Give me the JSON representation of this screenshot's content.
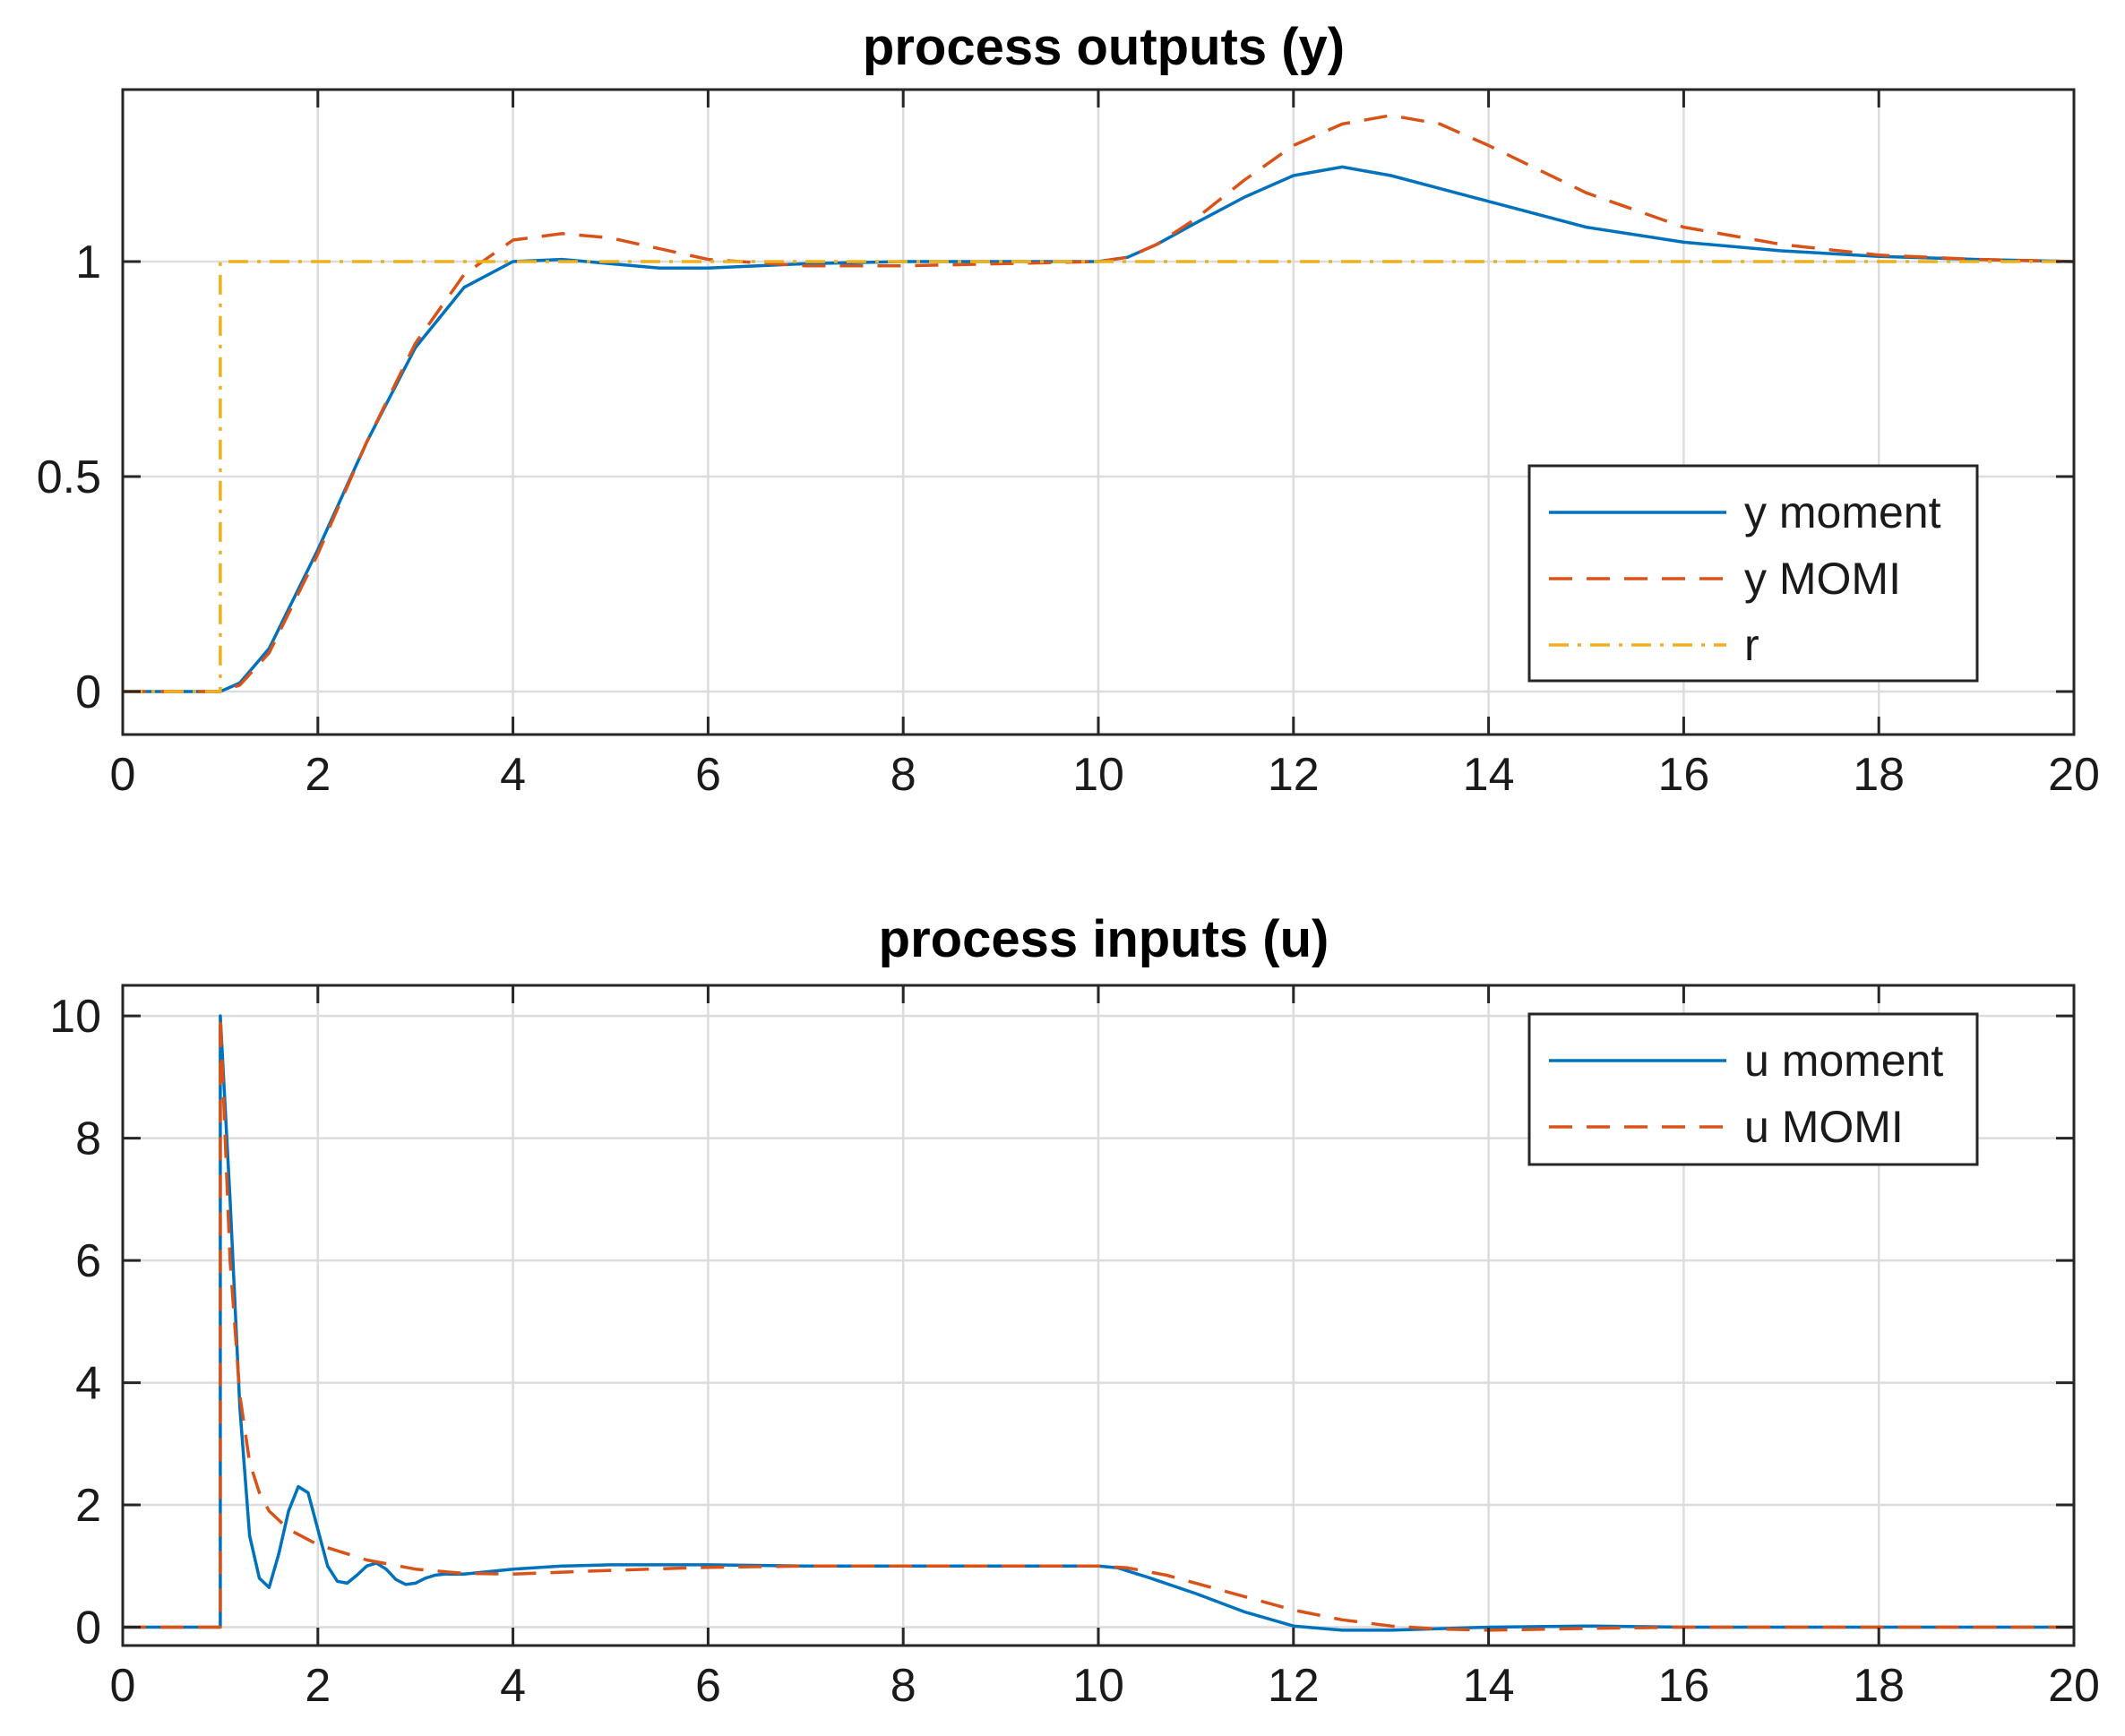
{
  "chart_data": [
    {
      "type": "line",
      "title": "process outputs (y)",
      "xlabel": "",
      "ylabel": "",
      "xlim": [
        0,
        20
      ],
      "ylim": [
        -0.1,
        1.4
      ],
      "xticks": [
        0,
        2,
        4,
        6,
        8,
        10,
        12,
        14,
        16,
        18,
        20
      ],
      "xtick_labels": [
        "0",
        "2",
        "4",
        "6",
        "8",
        "10",
        "12",
        "14",
        "16",
        "18",
        "20"
      ],
      "yticks": [
        0,
        0.5,
        1
      ],
      "ytick_labels": [
        "0",
        "0.5",
        "1"
      ],
      "grid": true,
      "legend_position": "bottom-right",
      "series": [
        {
          "name": "y moment",
          "color": "#0072BD",
          "style": "solid",
          "x": [
            0,
            1.0,
            1.2,
            1.5,
            2.0,
            2.5,
            3.0,
            3.5,
            4.0,
            4.5,
            5.0,
            5.5,
            6.0,
            7.0,
            8.0,
            9.0,
            10.0,
            10.3,
            10.6,
            11.0,
            11.5,
            12.0,
            12.5,
            13.0,
            13.5,
            14.0,
            15.0,
            16.0,
            17.0,
            18.0,
            19.0,
            20.0
          ],
          "y": [
            0,
            0,
            0.02,
            0.1,
            0.33,
            0.58,
            0.8,
            0.94,
            1.0,
            1.005,
            0.995,
            0.985,
            0.985,
            0.995,
            1.0,
            1.0,
            1.0,
            1.01,
            1.04,
            1.09,
            1.15,
            1.2,
            1.22,
            1.2,
            1.17,
            1.14,
            1.08,
            1.045,
            1.025,
            1.012,
            1.005,
            1.0
          ]
        },
        {
          "name": "y MOMI",
          "color": "#D95319",
          "style": "dashed",
          "x": [
            0,
            1.0,
            1.2,
            1.5,
            2.0,
            2.5,
            3.0,
            3.5,
            4.0,
            4.5,
            5.0,
            5.5,
            6.0,
            7.0,
            8.0,
            9.0,
            10.0,
            10.3,
            10.6,
            11.0,
            11.5,
            12.0,
            12.5,
            13.0,
            13.5,
            14.0,
            15.0,
            16.0,
            17.0,
            18.0,
            19.0,
            20.0
          ],
          "y": [
            0,
            0,
            0.015,
            0.09,
            0.32,
            0.58,
            0.81,
            0.97,
            1.05,
            1.065,
            1.055,
            1.03,
            1.005,
            0.99,
            0.99,
            0.995,
            1.0,
            1.01,
            1.04,
            1.1,
            1.19,
            1.27,
            1.32,
            1.34,
            1.32,
            1.27,
            1.16,
            1.08,
            1.04,
            1.015,
            1.005,
            1.0
          ]
        },
        {
          "name": "r",
          "color": "#EDB120",
          "style": "dashdot",
          "x": [
            0,
            1.0,
            1.0,
            20.0
          ],
          "y": [
            0,
            0,
            1,
            1
          ]
        }
      ]
    },
    {
      "type": "line",
      "title": "process inputs (u)",
      "xlabel": "",
      "ylabel": "",
      "xlim": [
        0,
        20
      ],
      "ylim": [
        -0.3,
        10.5
      ],
      "xticks": [
        0,
        2,
        4,
        6,
        8,
        10,
        12,
        14,
        16,
        18,
        20
      ],
      "xtick_labels": [
        "0",
        "2",
        "4",
        "6",
        "8",
        "10",
        "12",
        "14",
        "16",
        "18",
        "20"
      ],
      "yticks": [
        0,
        2,
        4,
        6,
        8,
        10
      ],
      "ytick_labels": [
        "0",
        "2",
        "4",
        "6",
        "8",
        "10"
      ],
      "grid": true,
      "legend_position": "top-right",
      "series": [
        {
          "name": "u moment",
          "color": "#0072BD",
          "style": "solid",
          "x": [
            0,
            1.0,
            1.0,
            1.1,
            1.2,
            1.3,
            1.4,
            1.5,
            1.6,
            1.7,
            1.8,
            1.9,
            2.0,
            2.1,
            2.2,
            2.3,
            2.4,
            2.5,
            2.6,
            2.7,
            2.8,
            2.9,
            3.0,
            3.1,
            3.2,
            3.3,
            3.5,
            4.0,
            4.5,
            5.0,
            6.0,
            7.0,
            8.0,
            9.0,
            10.0,
            10.2,
            10.5,
            11.0,
            11.5,
            12.0,
            12.5,
            13.0,
            14.0,
            15.0,
            16.0,
            18.0,
            20.0
          ],
          "y": [
            0,
            0,
            10.0,
            7.0,
            3.6,
            1.5,
            0.8,
            0.65,
            1.2,
            1.9,
            2.3,
            2.2,
            1.6,
            1.0,
            0.75,
            0.72,
            0.85,
            1.0,
            1.05,
            0.95,
            0.78,
            0.7,
            0.72,
            0.8,
            0.85,
            0.87,
            0.87,
            0.95,
            1.0,
            1.02,
            1.02,
            1.0,
            1.0,
            1.0,
            1.0,
            0.97,
            0.82,
            0.55,
            0.25,
            0.02,
            -0.05,
            -0.05,
            0.0,
            0.02,
            0.0,
            0.0,
            0.0
          ]
        },
        {
          "name": "u MOMI",
          "color": "#D95319",
          "style": "dashed",
          "x": [
            0,
            1.0,
            1.0,
            1.1,
            1.2,
            1.3,
            1.4,
            1.5,
            1.7,
            2.0,
            2.5,
            3.0,
            3.5,
            4.0,
            5.0,
            6.0,
            7.0,
            8.0,
            9.0,
            10.0,
            10.3,
            10.7,
            11.0,
            11.5,
            12.0,
            12.5,
            13.0,
            13.5,
            14.0,
            15.0,
            16.0,
            18.0,
            20.0
          ],
          "y": [
            0,
            0,
            10.0,
            6.0,
            3.8,
            2.7,
            2.2,
            1.9,
            1.6,
            1.35,
            1.1,
            0.95,
            0.88,
            0.87,
            0.93,
            0.98,
            1.0,
            1.0,
            1.0,
            1.0,
            0.97,
            0.85,
            0.72,
            0.5,
            0.28,
            0.12,
            0.02,
            -0.03,
            -0.05,
            -0.02,
            0.0,
            0.0,
            0.0
          ]
        }
      ]
    }
  ]
}
